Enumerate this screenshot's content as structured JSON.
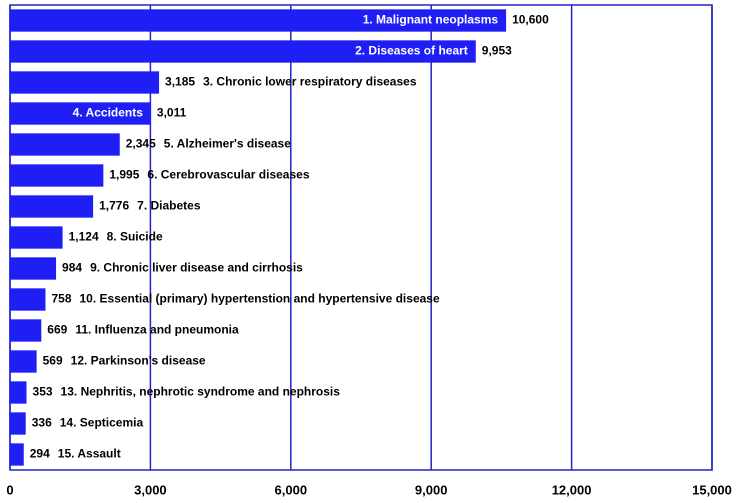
{
  "chart_data": {
    "type": "hbar",
    "categories": [
      "1. Malignant neoplasms",
      "2. Diseases of heart",
      "3. Chronic lower respiratory diseases",
      "4. Accidents",
      "5. Alzheimer's disease",
      "6. Cerebrovascular diseases",
      "7. Diabetes",
      "8. Suicide",
      "9. Chronic liver disease and cirrhosis",
      "10. Essential (primary) hypertenstion and hypertensive disease",
      "11. Influenza and pneumonia",
      "12. Parkinson's disease",
      "13. Nephritis, nephrotic syndrome and nephrosis",
      "14. Septicemia",
      "15. Assault"
    ],
    "values": [
      10600,
      9953,
      3185,
      3011,
      2345,
      1995,
      1776,
      1124,
      984,
      758,
      669,
      569,
      353,
      336,
      294
    ],
    "value_labels": [
      "10,600",
      "9,953",
      "3,185",
      "3,011",
      "2,345",
      "1,995",
      "1,776",
      "1,124",
      "984",
      "758",
      "669",
      "569",
      "353",
      "336",
      "294"
    ],
    "color": "#1f1ff5",
    "xlim": [
      0,
      15000
    ],
    "xticks": [
      0,
      {
        "value": 3000,
        "label": "3,000"
      },
      {
        "value": 6000,
        "label": "6,000"
      },
      {
        "value": 9000,
        "label": "9,000"
      },
      {
        "value": 12000,
        "label": "12,000"
      },
      {
        "value": 15000,
        "label": "15,000"
      }
    ],
    "grid": true
  }
}
